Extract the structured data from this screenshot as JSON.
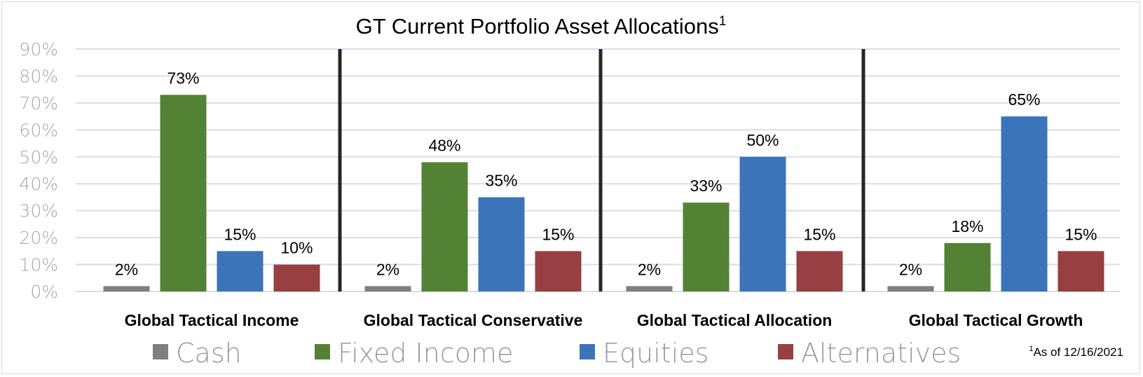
{
  "chart_data": {
    "type": "bar",
    "title": "GT Current Portfolio Asset Allocations",
    "title_superscript": "1",
    "ylim": [
      0,
      90
    ],
    "y_ticks": [
      "0%",
      "10%",
      "20%",
      "30%",
      "40%",
      "50%",
      "60%",
      "70%",
      "80%",
      "90%"
    ],
    "grid": true,
    "legend_position": "bottom",
    "categories": [
      "Global Tactical Income",
      "Global Tactical Conservative",
      "Global Tactical Allocation",
      "Global Tactical Growth"
    ],
    "series": [
      {
        "name": "Cash",
        "color": "#7f7f7f",
        "values": [
          2,
          2,
          2,
          2
        ],
        "labels": [
          "2%",
          "2%",
          "2%",
          "2%"
        ]
      },
      {
        "name": "Fixed Income",
        "color": "#548235",
        "values": [
          73,
          48,
          33,
          18
        ],
        "labels": [
          "73%",
          "48%",
          "33%",
          "18%"
        ]
      },
      {
        "name": "Equities",
        "color": "#3c74b9",
        "values": [
          15,
          35,
          50,
          65
        ],
        "labels": [
          "15%",
          "35%",
          "50%",
          "65%"
        ]
      },
      {
        "name": "Alternatives",
        "color": "#973f42",
        "values": [
          10,
          15,
          15,
          15
        ],
        "labels": [
          "10%",
          "15%",
          "15%",
          "15%"
        ]
      }
    ],
    "footnote": {
      "superscript": "1",
      "text": "As of 12/16/2021"
    }
  },
  "colors": {
    "gridline": "#d9dde6",
    "separator": "#262626"
  }
}
